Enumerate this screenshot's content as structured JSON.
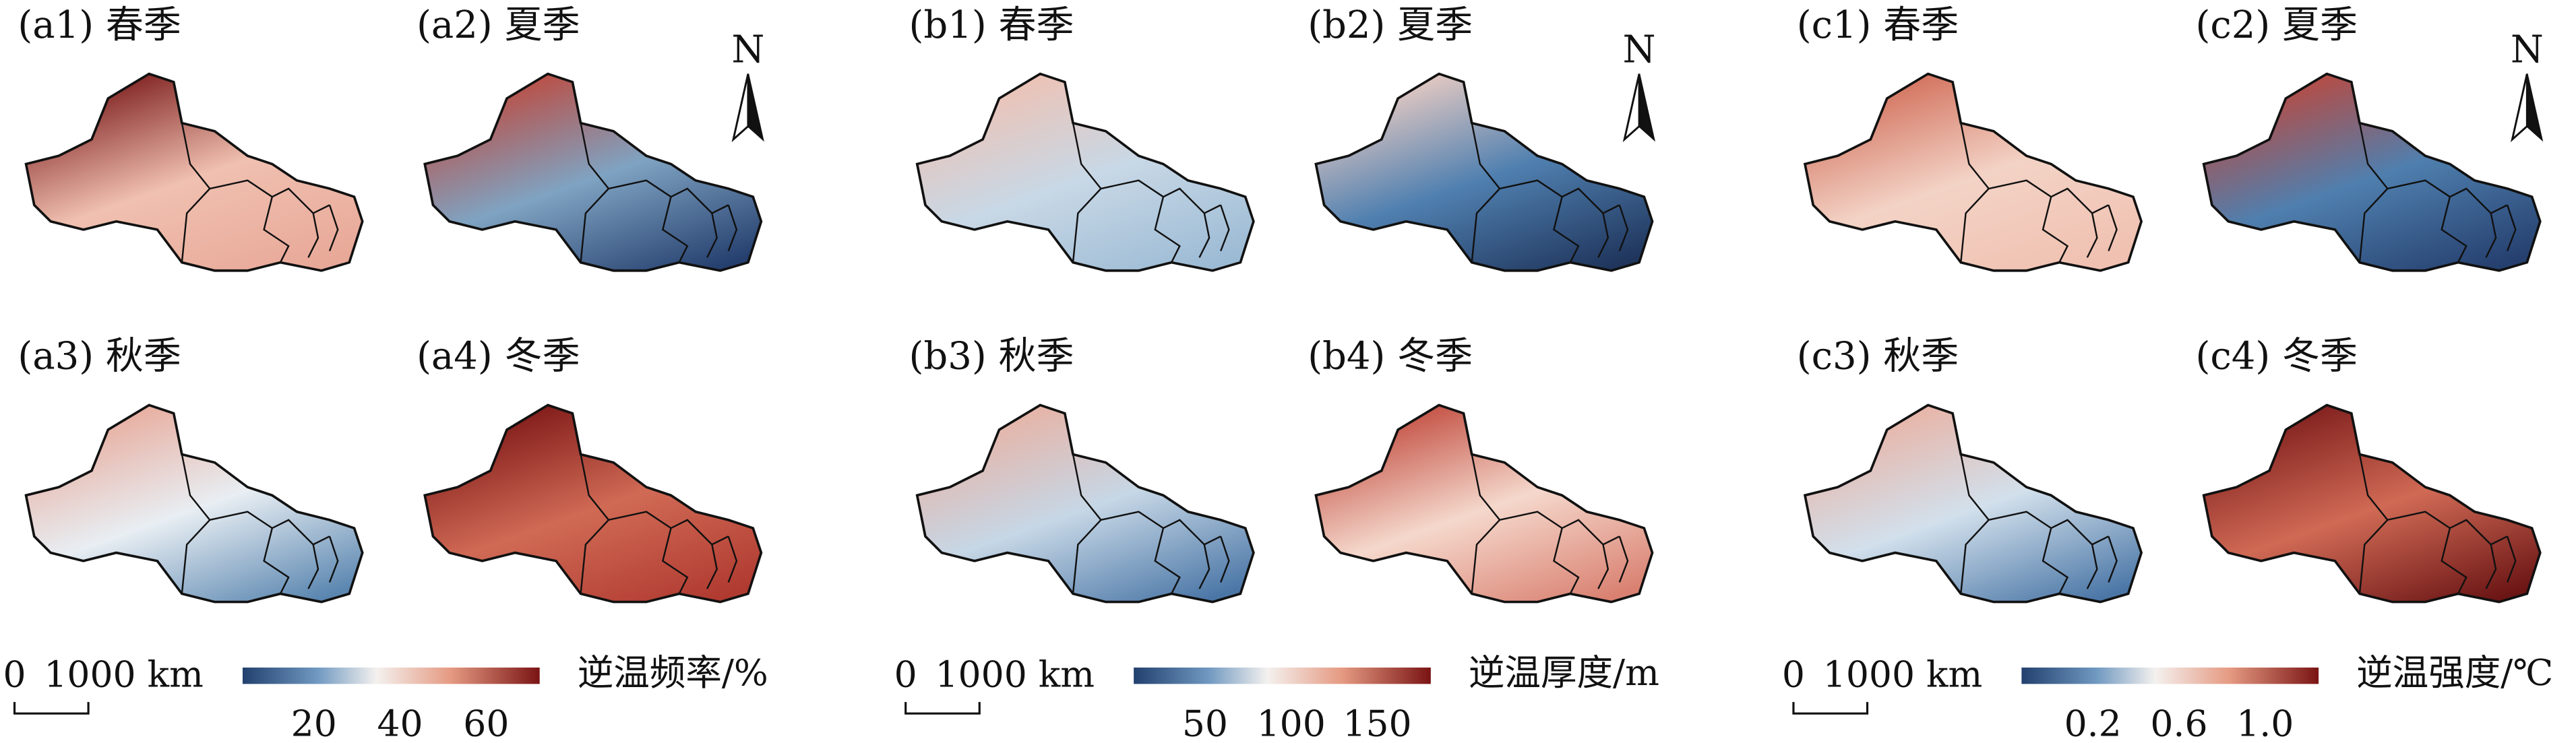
{
  "groups": [
    {
      "panels": [
        {
          "label": "(a1) 春季"
        },
        {
          "label": "(a2) 夏季"
        },
        {
          "label": "(a3) 秋季"
        },
        {
          "label": "(a4) 冬季"
        }
      ],
      "colorbar": {
        "title": "逆温频率/%",
        "ticks": [
          "20",
          "40",
          "60"
        ]
      },
      "scale_bar": {
        "zero": "0",
        "length": "1000 km"
      },
      "north": "N"
    },
    {
      "panels": [
        {
          "label": "(b1) 春季"
        },
        {
          "label": "(b2) 夏季"
        },
        {
          "label": "(b3) 秋季"
        },
        {
          "label": "(b4) 冬季"
        }
      ],
      "colorbar": {
        "title": "逆温厚度/m",
        "ticks": [
          "50",
          "100",
          "150"
        ]
      },
      "scale_bar": {
        "zero": "0",
        "length": "1000 km"
      },
      "north": "N"
    },
    {
      "panels": [
        {
          "label": "(c1) 春季"
        },
        {
          "label": "(c2) 夏季"
        },
        {
          "label": "(c3) 秋季"
        },
        {
          "label": "(c4) 冬季"
        }
      ],
      "colorbar": {
        "title": "逆温强度/℃",
        "ticks": [
          "0.2",
          "0.6",
          "1.0"
        ]
      },
      "scale_bar": {
        "zero": "0",
        "length": "1000 km"
      },
      "north": "N"
    }
  ]
}
